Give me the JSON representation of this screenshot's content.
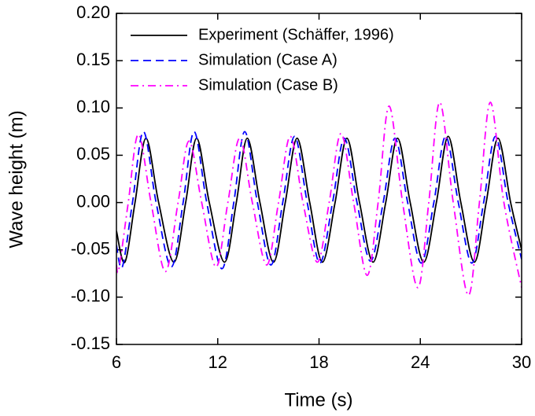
{
  "chart_data": {
    "type": "line",
    "xlabel": "Time (s)",
    "ylabel": "Wave height (m)",
    "xlim": [
      6,
      30
    ],
    "xticks": [
      6,
      12,
      18,
      24,
      30
    ],
    "ylim": [
      -0.15,
      0.2
    ],
    "yticks": [
      {
        "value": -0.15,
        "label": "-0.15"
      },
      {
        "value": -0.1,
        "label": "-0.10"
      },
      -0.05,
      {
        "value": 0,
        "label": "0.00"
      },
      0.05,
      {
        "value": 0.1,
        "label": "0.10"
      },
      0.15,
      {
        "value": 0.2,
        "label": "0.20"
      }
    ],
    "legend": "upper left",
    "series": [
      {
        "name": "Experiment (Schäffer, 1996)",
        "color": "#000000",
        "style": "solid",
        "x": [
          6,
          6.5,
          7.1,
          7.75,
          8.5,
          9.4,
          10.1,
          10.75,
          11.5,
          12.4,
          13.1,
          13.75,
          14.5,
          15.3,
          16.0,
          16.7,
          17.45,
          18.2,
          18.95,
          19.65,
          20.4,
          21.2,
          21.95,
          22.65,
          23.4,
          24.2,
          24.95,
          25.65,
          26.4,
          27.2,
          27.9,
          28.6,
          29.35,
          30
        ],
        "values": [
          -0.03,
          -0.063,
          0,
          0.068,
          0,
          -0.063,
          0,
          0.068,
          0,
          -0.063,
          0,
          0.068,
          0,
          -0.063,
          0,
          0.068,
          0,
          -0.063,
          0,
          0.068,
          0,
          -0.063,
          0,
          0.068,
          0,
          -0.063,
          0,
          0.07,
          0,
          -0.063,
          0,
          0.068,
          0,
          -0.05
        ]
      },
      {
        "name": "Simulation (Case A)",
        "color": "#0000ff",
        "style": "dashed",
        "x": [
          6,
          6.35,
          6.95,
          7.6,
          8.35,
          9.25,
          9.95,
          10.6,
          11.35,
          12.25,
          12.95,
          13.6,
          14.35,
          15.15,
          15.85,
          16.55,
          17.3,
          18.05,
          18.8,
          19.5,
          20.25,
          21.05,
          21.8,
          22.5,
          23.25,
          24.05,
          24.8,
          25.5,
          26.25,
          27.05,
          27.75,
          28.45,
          29.2,
          30
        ],
        "values": [
          -0.045,
          -0.068,
          0,
          0.075,
          0,
          -0.068,
          0,
          0.075,
          0,
          -0.07,
          0,
          0.075,
          0,
          -0.066,
          0,
          0.07,
          0,
          -0.064,
          0,
          0.068,
          0,
          -0.062,
          0,
          0.068,
          0,
          -0.064,
          0,
          0.07,
          0,
          -0.064,
          0,
          0.07,
          0,
          -0.06
        ]
      },
      {
        "name": "Simulation (Case B)",
        "color": "#ff00ff",
        "style": "dashdot",
        "x": [
          6,
          6.15,
          6.7,
          7.3,
          8.05,
          8.9,
          9.65,
          10.3,
          11.05,
          11.9,
          12.6,
          13.3,
          14.05,
          14.9,
          15.6,
          16.3,
          17.05,
          17.9,
          18.6,
          19.3,
          20.05,
          20.85,
          21.5,
          22.15,
          22.95,
          23.85,
          24.5,
          25.15,
          25.95,
          26.85,
          27.5,
          28.15,
          28.95,
          30
        ],
        "values": [
          -0.066,
          -0.07,
          0,
          0.072,
          0,
          -0.073,
          0,
          0.065,
          0,
          -0.068,
          0,
          0.068,
          0,
          -0.066,
          0,
          0.07,
          0,
          -0.063,
          0,
          0.073,
          0,
          -0.077,
          0,
          0.102,
          0,
          -0.09,
          0,
          0.106,
          0,
          -0.098,
          0,
          0.106,
          0,
          -0.09
        ]
      }
    ]
  }
}
